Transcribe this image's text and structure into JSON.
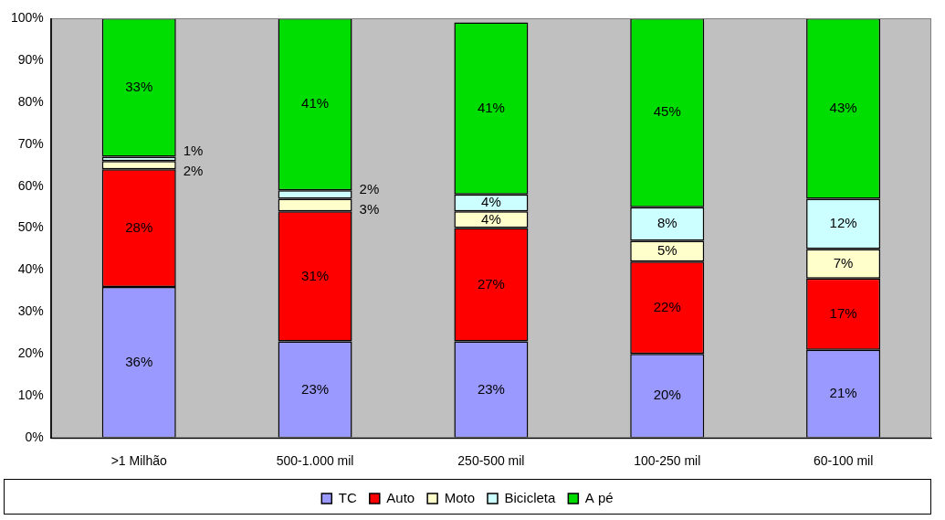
{
  "chart_data": {
    "type": "bar",
    "stacked": true,
    "grid": false,
    "legend": "bottom",
    "data_labels": true,
    "categories": [
      ">1 Milhão",
      "500-1.000 mil",
      "250-500 mil",
      "100-250 mil",
      "60-100 mil"
    ],
    "ylim": [
      0,
      100
    ],
    "yticks": [
      {
        "value": 0,
        "label": "0%"
      },
      {
        "value": 10,
        "label": "10%"
      },
      {
        "value": 20,
        "label": "20%"
      },
      {
        "value": 30,
        "label": "30%"
      },
      {
        "value": 40,
        "label": "40%"
      },
      {
        "value": 50,
        "label": "50%"
      },
      {
        "value": 60,
        "label": "60%"
      },
      {
        "value": 70,
        "label": "70%"
      },
      {
        "value": 80,
        "label": "80%"
      },
      {
        "value": 90,
        "label": "90%"
      },
      {
        "value": 100,
        "label": "100%"
      }
    ],
    "series": [
      {
        "name": "TC",
        "color": "#9999ff",
        "values": [
          36,
          23,
          23,
          20,
          21
        ],
        "value_labels": [
          "36%",
          "23%",
          "23%",
          "20%",
          "21%"
        ]
      },
      {
        "name": "Auto",
        "color": "#ff0000",
        "values": [
          28,
          31,
          27,
          22,
          17
        ],
        "value_labels": [
          "28%",
          "31%",
          "27%",
          "22%",
          "17%"
        ]
      },
      {
        "name": "Moto",
        "color": "#ffffcc",
        "values": [
          2,
          3,
          4,
          5,
          7
        ],
        "value_labels": [
          "2%",
          "3%",
          "4%",
          "5%",
          "7%"
        ]
      },
      {
        "name": "Bicicleta",
        "color": "#ccffff",
        "values": [
          1,
          2,
          4,
          8,
          12
        ],
        "value_labels": [
          "1%",
          "2%",
          "4%",
          "8%",
          "12%"
        ]
      },
      {
        "name": "A pé",
        "color": "#00dd00",
        "values": [
          33,
          41,
          41,
          45,
          43
        ],
        "value_labels": [
          "33%",
          "41%",
          "41%",
          "45%",
          "43%"
        ]
      }
    ]
  }
}
